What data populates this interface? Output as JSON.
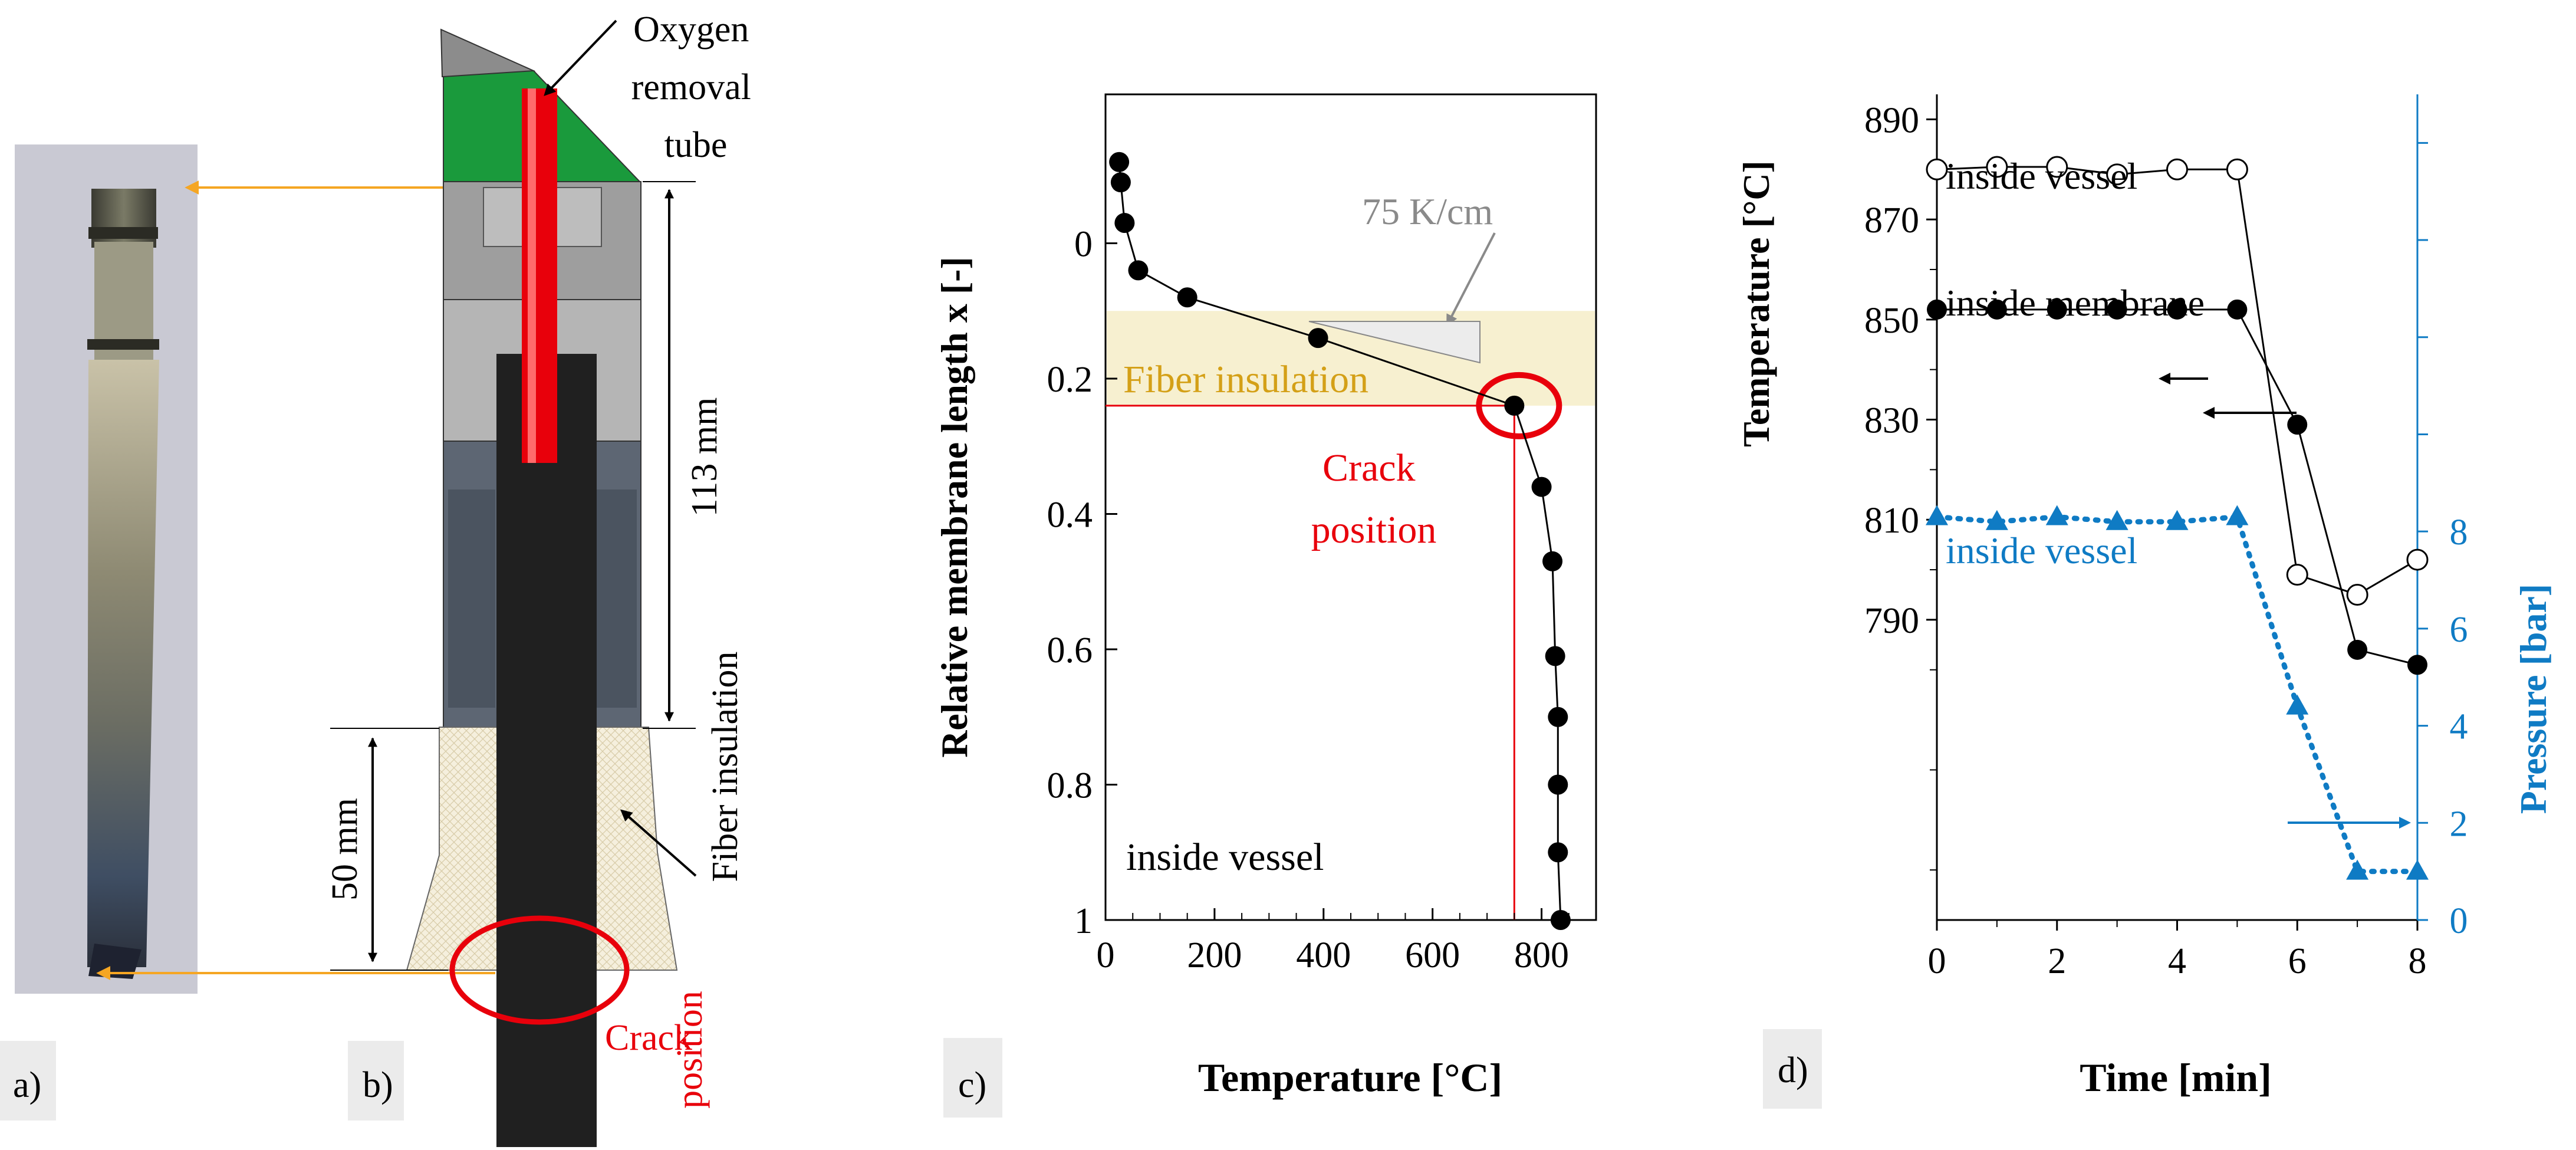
{
  "colors": {
    "arrow_orange": "#F5A623",
    "red": "#E8000B",
    "green": "#1A9A3C",
    "blue": "#0F7BC4",
    "fiber_bg": "#F7F0D0",
    "fiber_label": "#D4A017",
    "gray_label": "#8A8A8A",
    "panel_label_bg": "#EBEBEB"
  },
  "panel_a": {
    "label": "a)"
  },
  "panel_b": {
    "label": "b)",
    "tube_label": [
      "Oxygen",
      "removal",
      "tube"
    ],
    "dim_113": "113 mm",
    "dim_50": "50 mm",
    "fiber_label": "Fiber insulation",
    "crack_label": [
      "Crack",
      "position"
    ]
  },
  "panel_c": {
    "label": "c)",
    "slope_label": "75 K/cm",
    "fiber_label": "Fiber insulation",
    "crack_label": [
      "Crack",
      "position"
    ],
    "inside_label": "inside vessel"
  },
  "panel_d": {
    "label": "d)",
    "label_vessel_temp": "inside vessel",
    "label_membrane_temp": "inside membrane",
    "label_vessel_pressure": "inside vessel"
  },
  "chart_data": [
    {
      "type": "line",
      "title": "",
      "xlabel": "Temperature [°C]",
      "ylabel": "Relative membrane length x [-]",
      "xlim": [
        0,
        900
      ],
      "ylim": [
        1,
        -0.22
      ],
      "x_ticks": [
        "0",
        "200",
        "400",
        "600",
        "800"
      ],
      "y_ticks": [
        "0",
        "0.2",
        "0.4",
        "0.6",
        "0.8",
        "1"
      ],
      "fiber_insulation_band": [
        0.1,
        0.24
      ],
      "crack_point": {
        "x": 750,
        "y": 0.24
      },
      "series": [
        {
          "name": "inside vessel",
          "x": [
            25,
            28,
            35,
            60,
            150,
            390,
            750,
            800,
            820,
            825,
            830,
            830,
            830,
            835
          ],
          "y": [
            -0.12,
            -0.09,
            -0.03,
            0.04,
            0.08,
            0.14,
            0.24,
            0.36,
            0.47,
            0.61,
            0.7,
            0.8,
            0.9,
            1.0
          ]
        }
      ]
    },
    {
      "type": "line",
      "title": "",
      "xlabel": "Time [min]",
      "ylabel": "Temperature [°C]",
      "y2label": "Pressure [bar]",
      "xlim": [
        0,
        8
      ],
      "ylim": [
        730,
        895
      ],
      "y2lim": [
        0,
        17
      ],
      "x_ticks": [
        "0",
        "2",
        "4",
        "6",
        "8"
      ],
      "y_ticks": [
        "790",
        "810",
        "830",
        "850",
        "870",
        "890"
      ],
      "y2_ticks": [
        "0",
        "2",
        "4",
        "6",
        "8"
      ],
      "series": [
        {
          "name": "inside vessel",
          "axis": "temperature",
          "marker": "open-circle",
          "x": [
            0,
            1,
            2,
            3,
            4,
            5,
            6,
            7,
            8
          ],
          "y": [
            880,
            880.5,
            880.5,
            879,
            880,
            880,
            799,
            795,
            802
          ]
        },
        {
          "name": "inside membrane",
          "axis": "temperature",
          "marker": "filled-circle",
          "x": [
            0,
            1,
            2,
            3,
            4,
            5,
            6,
            7,
            8
          ],
          "y": [
            852,
            852,
            852,
            852,
            852,
            852,
            829,
            784,
            781
          ]
        },
        {
          "name": "inside vessel",
          "axis": "pressure",
          "marker": "triangle",
          "x": [
            0,
            1,
            2,
            3,
            4,
            5,
            6,
            7,
            8
          ],
          "y": [
            8.3,
            8.2,
            8.3,
            8.2,
            8.2,
            8.3,
            4.4,
            1.0,
            1.0
          ]
        }
      ]
    }
  ]
}
